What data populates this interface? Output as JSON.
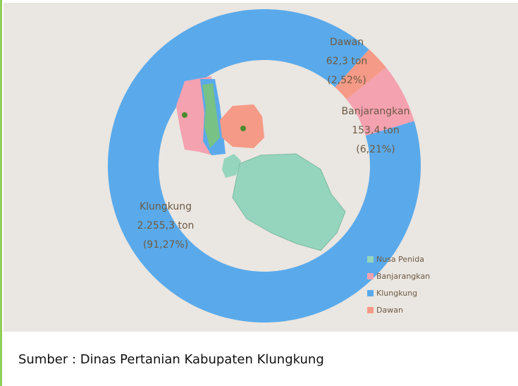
{
  "chart_data": {
    "type": "donut",
    "categories": [
      "Nusa Penida",
      "Banjarangkan",
      "Klungkung",
      "Dawan"
    ],
    "values": [
      null,
      153.4,
      2255.3,
      62.3
    ],
    "value_labels": [
      null,
      "153,4 ton",
      "2.255,3 ton",
      "62,3 ton"
    ],
    "percentages": [
      null,
      6.21,
      91.27,
      2.52
    ],
    "percentage_labels": [
      null,
      "(6,21%)",
      "(91,27%)",
      "(2,52%)"
    ],
    "colors": [
      "#95d5bd",
      "#f4a1b0",
      "#5aaaeb",
      "#f59a86"
    ],
    "source": "Sumber : Dinas Pertanian Kabupaten Klungkung"
  }
}
